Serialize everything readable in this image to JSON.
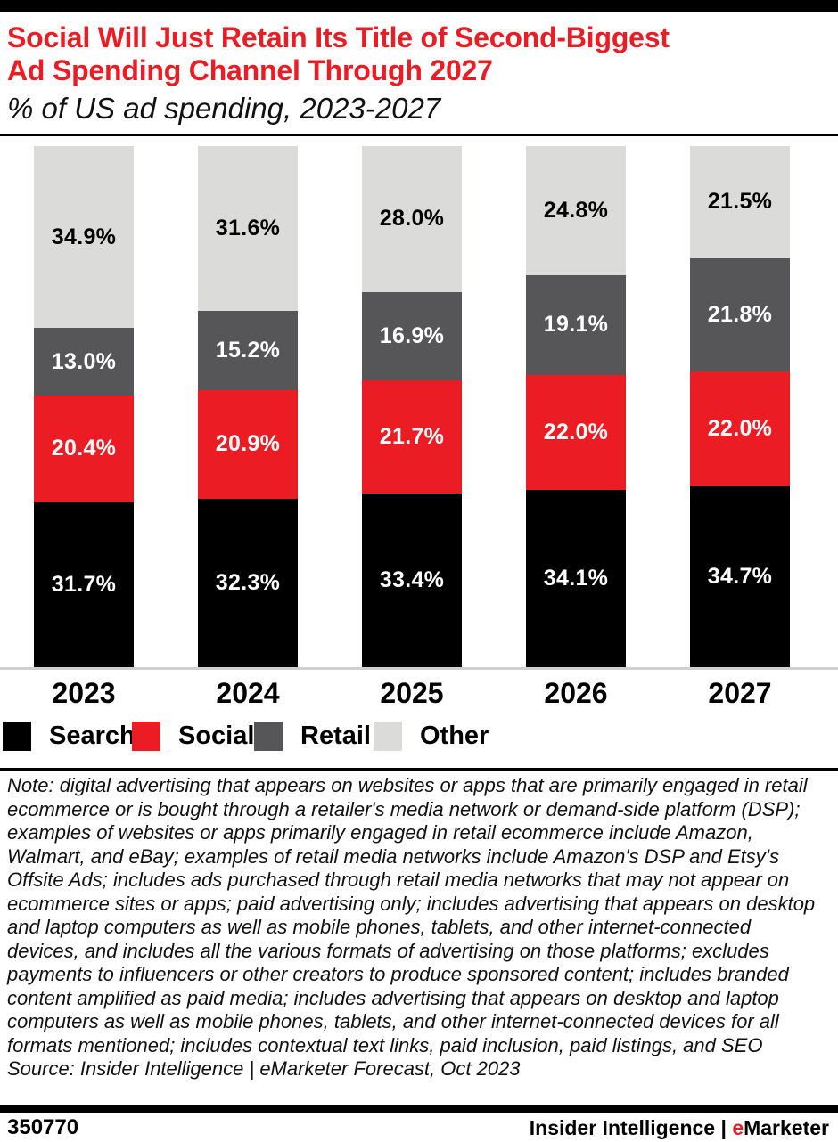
{
  "colors": {
    "accent_red": "#EC1C24",
    "search_black": "#000000",
    "social_red": "#EC1C24",
    "retail_gray": "#565659",
    "other_gray": "#DBDBD9",
    "axis_line": "#D0D0D0"
  },
  "header": {
    "title_line1": "Social Will Just Retain Its Title of Second-Biggest",
    "title_line2": "Ad Spending Channel Through 2027",
    "subtitle": "% of US ad spending, 2023-2027"
  },
  "chart_data": {
    "type": "bar",
    "stacked": true,
    "title": "Social Will Just Retain Its Title of Second-Biggest Ad Spending Channel Through 2027",
    "subtitle": "% of US ad spending, 2023-2027",
    "categories": [
      "2023",
      "2024",
      "2025",
      "2026",
      "2027"
    ],
    "series": [
      {
        "name": "Search",
        "color": "#000000",
        "label_color": "#FFFFFF",
        "values": [
          31.7,
          32.3,
          33.4,
          34.1,
          34.7
        ]
      },
      {
        "name": "Social",
        "color": "#EC1C24",
        "label_color": "#FFFFFF",
        "values": [
          20.4,
          20.9,
          21.7,
          22.0,
          22.0
        ]
      },
      {
        "name": "Retail",
        "color": "#565659",
        "label_color": "#FFFFFF",
        "values": [
          13.0,
          15.2,
          16.9,
          19.1,
          21.8
        ]
      },
      {
        "name": "Other",
        "color": "#DBDBD9",
        "label_color": "#000000",
        "values": [
          34.9,
          31.6,
          28.0,
          24.8,
          21.5
        ]
      }
    ],
    "ylim": [
      0,
      100
    ],
    "unit": "%",
    "value_format": "one-decimal-percent",
    "legend_position": "bottom",
    "grid": false
  },
  "note": "Note: digital advertising that appears on websites or apps that are primarily engaged in retail ecommerce or is bought through a retailer's media network or demand-side platform (DSP); examples of websites or apps primarily engaged in retail ecommerce include Amazon, Walmart, and eBay; examples of retail media networks include Amazon's DSP and Etsy's Offsite Ads; includes ads purchased through retail media networks that may not appear on ecommerce sites or apps; paid advertising only; includes advertising that appears on desktop and laptop computers as well as mobile phones, tablets, and other internet-connected devices, and includes all the various formats of advertising on those platforms; excludes payments to influencers or other creators to produce sponsored content; includes branded content amplified as paid media; includes advertising that appears on desktop and laptop computers as well as mobile phones, tablets, and other internet-connected devices for all formats mentioned; includes contextual text links, paid inclusion, paid listings, and SEO",
  "source": "Source: Insider Intelligence | eMarketer Forecast, Oct 2023",
  "footer": {
    "chart_id": "350770",
    "brand": "Insider Intelligence",
    "separator": " | ",
    "emarketer_e": "e",
    "emarketer_rest": "Marketer"
  }
}
